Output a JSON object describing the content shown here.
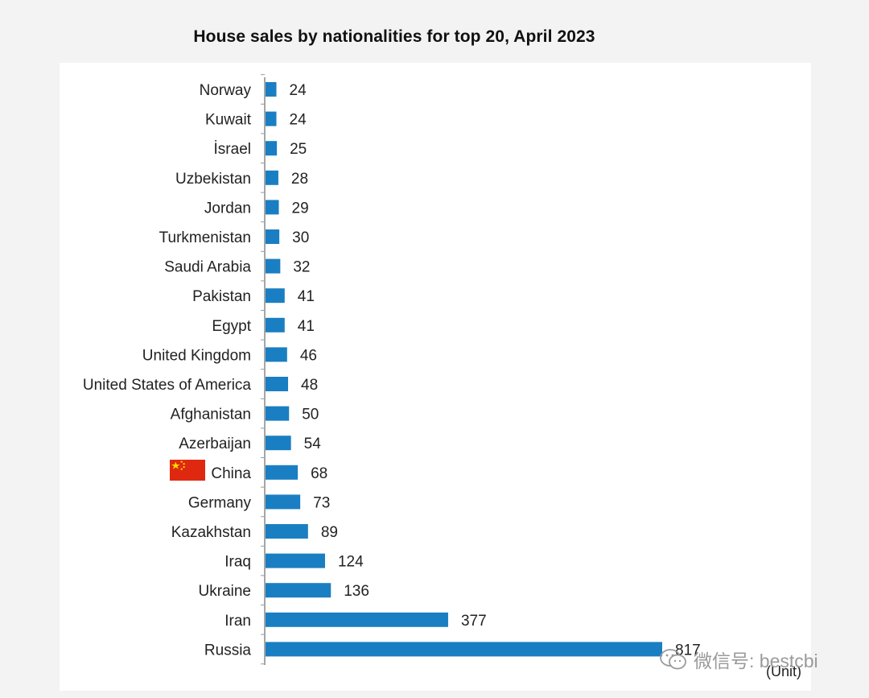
{
  "chart_data": {
    "type": "bar",
    "orientation": "horizontal",
    "title": "House sales by nationalities for top 20, April 2023",
    "unit": "(Unit)",
    "categories": [
      "Norway",
      "Kuwait",
      "İsrael",
      "Uzbekistan",
      "Jordan",
      "Turkmenistan",
      "Saudi Arabia",
      "Pakistan",
      "Egypt",
      "United Kingdom",
      "United States of America",
      "Afghanistan",
      "Azerbaijan",
      "China",
      "Germany",
      "Kazakhstan",
      "Iraq",
      "Ukraine",
      "Iran",
      "Russia"
    ],
    "values": [
      24,
      24,
      25,
      28,
      29,
      30,
      32,
      41,
      41,
      46,
      48,
      50,
      54,
      68,
      73,
      89,
      124,
      136,
      377,
      817
    ],
    "data_labels": [
      "24",
      "24",
      "25",
      "28",
      "29",
      "30",
      "32",
      "41",
      "41",
      "46",
      "48",
      "50",
      "54",
      "68",
      "73",
      "89",
      "124",
      "136",
      "377",
      "817"
    ],
    "bar_color": "#1a7ec2",
    "grid": false,
    "legend": "none"
  },
  "decorations": {
    "flag": {
      "country": "China",
      "colors": [
        "#de2910",
        "#ffde00"
      ]
    },
    "watermark": {
      "icon": "wechat-icon",
      "text": "微信号: bestcbi"
    }
  }
}
